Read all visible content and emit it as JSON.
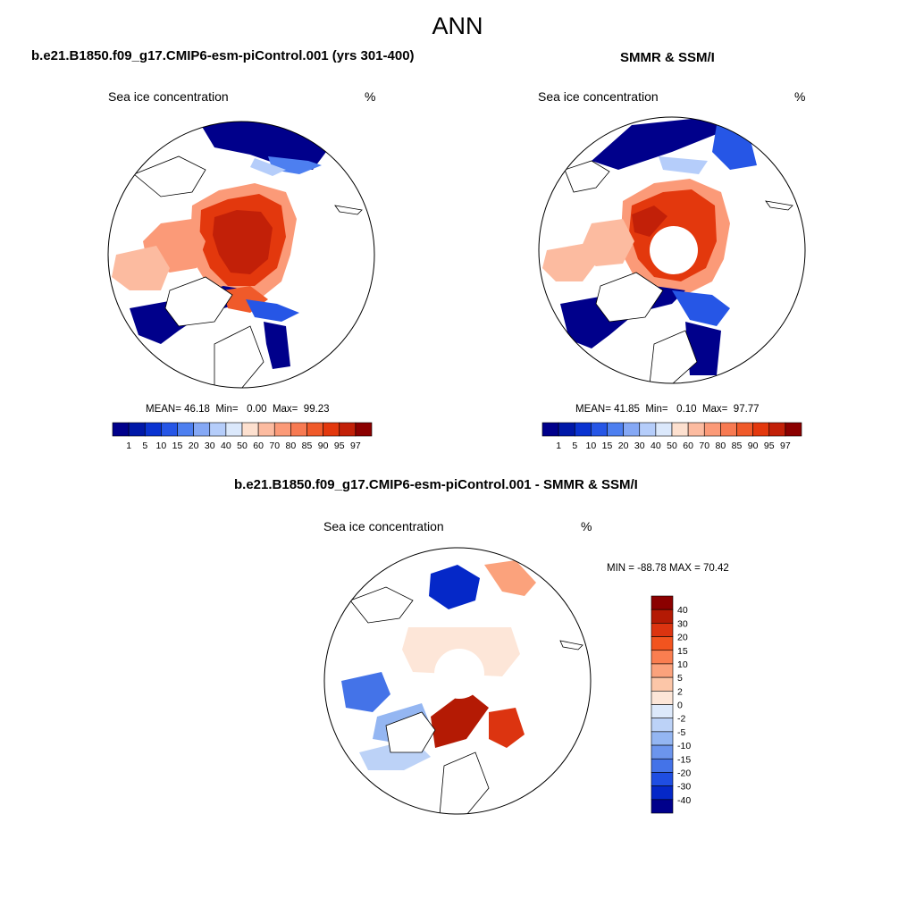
{
  "figure": {
    "title": "ANN"
  },
  "panels": {
    "model": {
      "title": "b.e21.B1850.f09_g17.CMIP6-esm-piControl.001 (yrs 301-400)",
      "left_label": "Sea ice concentration",
      "right_label": "%",
      "mean_label": "MEAN=",
      "mean": "46.18",
      "min_label": "Min=",
      "min": "0.00",
      "max_label": "Max=",
      "max": "99.23"
    },
    "obs": {
      "title": "SMMR & SSM/I",
      "left_label": "Sea ice concentration",
      "right_label": "%",
      "mean_label": "MEAN=",
      "mean": "41.85",
      "min_label": "Min=",
      "min": "0.10",
      "max_label": "Max=",
      "max": "97.77"
    },
    "diff": {
      "title": "b.e21.B1850.f09_g17.CMIP6-esm-piControl.001 - SMMR & SSM/I",
      "left_label": "Sea ice concentration",
      "right_label": "%",
      "minmax_text": "MIN = -88.78 MAX =  70.42"
    }
  },
  "chart_data": [
    {
      "type": "heatmap",
      "projection": "north-polar-stereographic",
      "field": "sea ice concentration",
      "stats": {
        "mean": 46.18,
        "min": 0.0,
        "max": 99.23
      },
      "colorbar": {
        "orientation": "horizontal",
        "levels": [
          "1",
          "5",
          "10",
          "15",
          "20",
          "30",
          "40",
          "50",
          "60",
          "70",
          "80",
          "85",
          "90",
          "95",
          "97"
        ],
        "colors": [
          "#00008b",
          "#0018a8",
          "#0a33d1",
          "#2656e6",
          "#4d7ff0",
          "#85a8f5",
          "#b5cdfa",
          "#dbe8fb",
          "#fde0cf",
          "#fcbba0",
          "#fb9a78",
          "#f77a52",
          "#f05a2a",
          "#e3380d",
          "#c22008",
          "#8b0000"
        ]
      }
    },
    {
      "type": "heatmap",
      "projection": "north-polar-stereographic",
      "field": "sea ice concentration",
      "stats": {
        "mean": 41.85,
        "min": 0.1,
        "max": 97.77
      },
      "colorbar": {
        "orientation": "horizontal",
        "levels": [
          "1",
          "5",
          "10",
          "15",
          "20",
          "30",
          "40",
          "50",
          "60",
          "70",
          "80",
          "85",
          "90",
          "95",
          "97"
        ],
        "colors": [
          "#00008b",
          "#0018a8",
          "#0a33d1",
          "#2656e6",
          "#4d7ff0",
          "#85a8f5",
          "#b5cdfa",
          "#dbe8fb",
          "#fde0cf",
          "#fcbba0",
          "#fb9a78",
          "#f77a52",
          "#f05a2a",
          "#e3380d",
          "#c22008",
          "#8b0000"
        ]
      }
    },
    {
      "type": "heatmap",
      "projection": "north-polar-stereographic",
      "field": "sea ice concentration difference",
      "stats": {
        "min": -88.78,
        "max": 70.42
      },
      "colorbar": {
        "orientation": "vertical",
        "levels": [
          "40",
          "30",
          "20",
          "15",
          "10",
          "5",
          "2",
          "0",
          "-2",
          "-5",
          "-10",
          "-15",
          "-20",
          "-30",
          "-40"
        ],
        "colors": [
          "#8b0000",
          "#b41a04",
          "#dc3410",
          "#f2541f",
          "#fa7e50",
          "#fba27c",
          "#fcc6a8",
          "#fde6d8",
          "#dde9fb",
          "#bcd2f7",
          "#94b6f2",
          "#6c95ed",
          "#4473e8",
          "#1f4ee2",
          "#0528c8",
          "#00008b"
        ]
      }
    }
  ]
}
